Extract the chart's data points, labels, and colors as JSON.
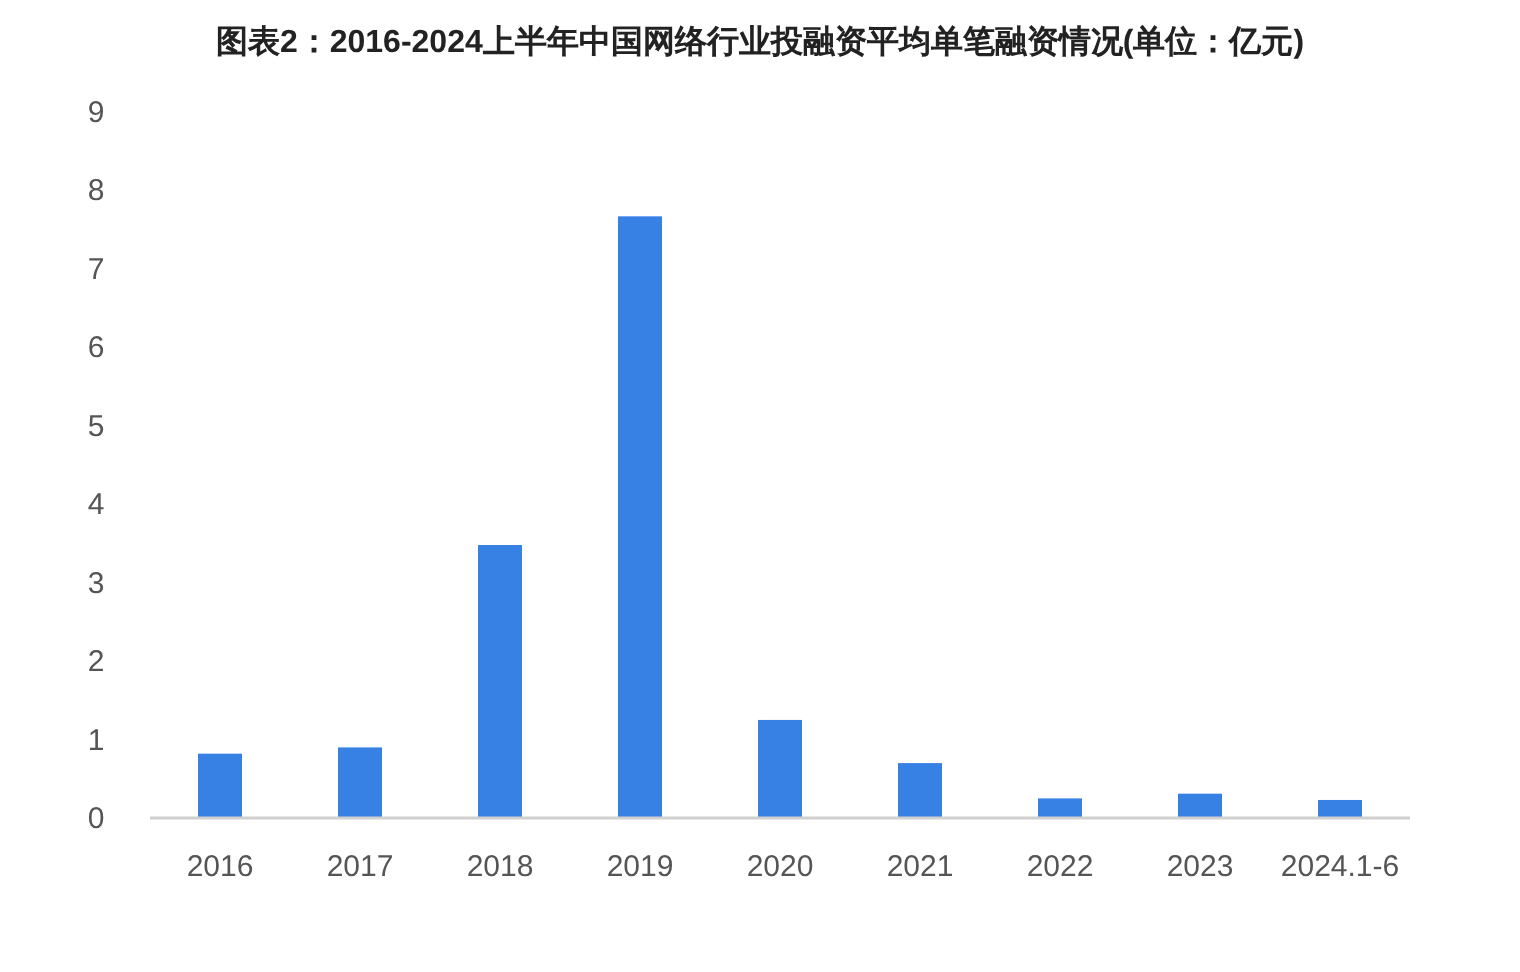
{
  "chart_data": {
    "type": "bar",
    "title": "图表2：2016-2024上半年中国网络行业投融资平均单笔融资情况(单位：亿元)",
    "categories": [
      "2016",
      "2017",
      "2018",
      "2019",
      "2020",
      "2021",
      "2022",
      "2023",
      "2024.1-6"
    ],
    "values": [
      0.82,
      0.9,
      3.48,
      7.67,
      1.25,
      0.7,
      0.25,
      0.31,
      0.23
    ],
    "color": "#3781e4",
    "ylim": [
      0,
      9
    ],
    "yticks": [
      0,
      1,
      2,
      3,
      4,
      5,
      6,
      7,
      8,
      9
    ],
    "grid": false
  }
}
